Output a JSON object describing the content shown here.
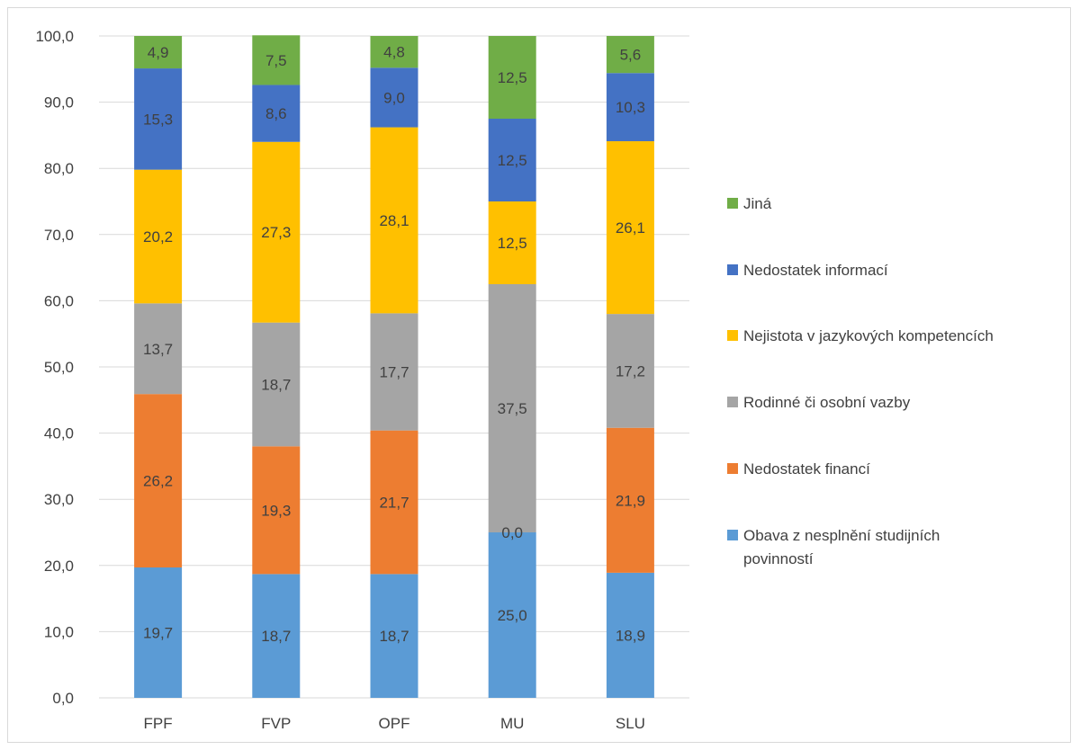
{
  "chart_data": {
    "type": "bar",
    "stacked": true,
    "categories": [
      "FPF",
      "FVP",
      "OPF",
      "MU",
      "SLU"
    ],
    "ylim": [
      0,
      100
    ],
    "yticks": [
      "0,0",
      "10,0",
      "20,0",
      "30,0",
      "40,0",
      "50,0",
      "60,0",
      "70,0",
      "80,0",
      "90,0",
      "100,0"
    ],
    "grid": "horizontal",
    "legend_position": "right",
    "series": [
      {
        "name": "Obava z nesplnění studijních povinností",
        "color": "#5b9bd5",
        "values": [
          19.7,
          18.7,
          18.7,
          25.0,
          18.9
        ],
        "labels": [
          "19,7",
          "18,7",
          "18,7",
          "25,0",
          "18,9"
        ]
      },
      {
        "name": "Nedostatek financí",
        "color": "#ed7d31",
        "values": [
          26.2,
          19.3,
          21.7,
          0.0,
          21.9
        ],
        "labels": [
          "26,2",
          "19,3",
          "21,7",
          "0,0",
          "21,9"
        ]
      },
      {
        "name": "Rodinné či osobní vazby",
        "color": "#a5a5a5",
        "values": [
          13.7,
          18.7,
          17.7,
          37.5,
          17.2
        ],
        "labels": [
          "13,7",
          "18,7",
          "17,7",
          "37,5",
          "17,2"
        ]
      },
      {
        "name": "Nejistota v jazykových kompetencích",
        "color": "#ffc000",
        "values": [
          20.2,
          27.3,
          28.1,
          12.5,
          26.1
        ],
        "labels": [
          "20,2",
          "27,3",
          "28,1",
          "12,5",
          "26,1"
        ]
      },
      {
        "name": "Nedostatek informací",
        "color": "#4472c4",
        "values": [
          15.3,
          8.6,
          9.0,
          12.5,
          10.3
        ],
        "labels": [
          "15,3",
          "8,6",
          "9,0",
          "12,5",
          "10,3"
        ]
      },
      {
        "name": "Jiná",
        "color": "#70ad47",
        "values": [
          4.9,
          7.5,
          4.8,
          12.5,
          5.6
        ],
        "labels": [
          "4,9",
          "7,5",
          "4,8",
          "12,5",
          "5,6"
        ]
      }
    ],
    "legend_order": [
      "Jiná",
      "Nedostatek informací",
      "Nejistota v jazykových kompetencích",
      "Rodinné či osobní vazby",
      "Nedostatek financí",
      "Obava z nesplnění studijních povinností"
    ],
    "gridline_color": "#d9d9d9",
    "text_color": "#404040"
  }
}
